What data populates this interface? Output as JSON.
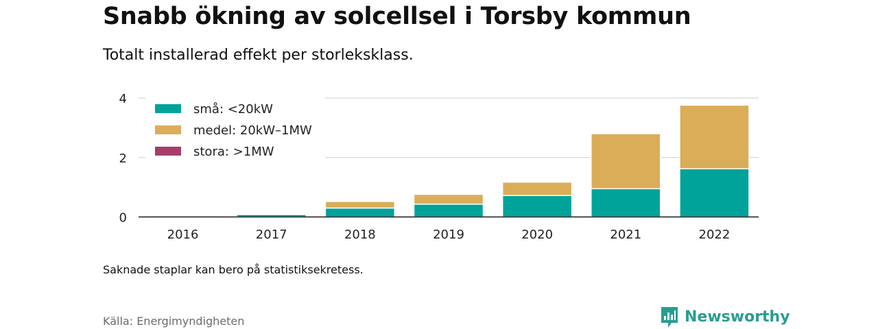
{
  "header": {
    "title": "Snabb ökning av solcellsel i Torsby kommun",
    "subtitle": "Totalt installerad effekt per storleksklass."
  },
  "footer": {
    "note": "Saknade staplar kan bero på statistiksekretess.",
    "source": "Källa: Energimyndigheten",
    "brand": "Newsworthy",
    "brand_icon": "newsworthy-logo-icon",
    "brand_color": "#2a9d92"
  },
  "chart_data": {
    "type": "bar",
    "stacked": true,
    "categories": [
      "2016",
      "2017",
      "2018",
      "2019",
      "2020",
      "2021",
      "2022"
    ],
    "series": [
      {
        "name": "små: <20kW",
        "color": "#00a39a",
        "values": [
          0.04,
          0.08,
          0.3,
          0.43,
          0.72,
          0.95,
          1.62
        ]
      },
      {
        "name": "medel: 20kW–1MW",
        "color": "#dbad59",
        "values": [
          0,
          0,
          0.22,
          0.33,
          0.45,
          1.85,
          2.14
        ]
      },
      {
        "name": "stora: >1MW",
        "color": "#a63d6b",
        "values": [
          0,
          0,
          0,
          0,
          0,
          0,
          0
        ]
      }
    ],
    "yticks": [
      0,
      2,
      4
    ],
    "ylim": [
      0,
      4
    ],
    "grid": true,
    "legend_position": "top-left"
  }
}
